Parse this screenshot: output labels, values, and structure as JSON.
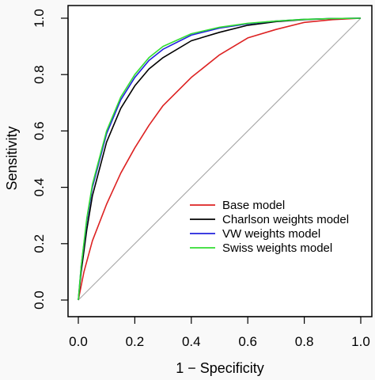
{
  "chart_data": {
    "type": "line",
    "xlabel": "1 − Specificity",
    "ylabel": "Sensitivity",
    "xlim": [
      0.0,
      1.0
    ],
    "ylim": [
      0.0,
      1.0
    ],
    "xticks": [
      "0.0",
      "0.2",
      "0.4",
      "0.6",
      "0.8",
      "1.0"
    ],
    "yticks": [
      "0.0",
      "0.2",
      "0.4",
      "0.6",
      "0.8",
      "1.0"
    ],
    "grid": false,
    "legend_position": "bottom-right",
    "reference_line": {
      "from": [
        0,
        0
      ],
      "to": [
        1,
        1
      ],
      "color": "#aaaaaa"
    },
    "series": [
      {
        "name": "Base model",
        "color": "#dd2222",
        "x": [
          0,
          0.02,
          0.05,
          0.1,
          0.15,
          0.2,
          0.25,
          0.3,
          0.4,
          0.5,
          0.6,
          0.7,
          0.8,
          0.9,
          1.0
        ],
        "y": [
          0,
          0.1,
          0.21,
          0.34,
          0.45,
          0.54,
          0.62,
          0.69,
          0.79,
          0.87,
          0.93,
          0.96,
          0.985,
          0.995,
          1.0
        ]
      },
      {
        "name": "Charlson weights model",
        "color": "#000000",
        "x": [
          0,
          0.01,
          0.03,
          0.05,
          0.1,
          0.15,
          0.2,
          0.25,
          0.3,
          0.4,
          0.5,
          0.6,
          0.7,
          0.8,
          0.9,
          1.0
        ],
        "y": [
          0,
          0.1,
          0.25,
          0.37,
          0.56,
          0.68,
          0.76,
          0.82,
          0.86,
          0.92,
          0.95,
          0.975,
          0.988,
          0.995,
          0.999,
          1.0
        ]
      },
      {
        "name": "VW weights model",
        "color": "#2222dd",
        "x": [
          0,
          0.01,
          0.03,
          0.05,
          0.1,
          0.15,
          0.2,
          0.25,
          0.3,
          0.4,
          0.5,
          0.6,
          0.7,
          0.8,
          0.9,
          1.0
        ],
        "y": [
          0,
          0.12,
          0.28,
          0.4,
          0.59,
          0.71,
          0.79,
          0.85,
          0.89,
          0.94,
          0.965,
          0.98,
          0.99,
          0.996,
          0.999,
          1.0
        ]
      },
      {
        "name": "Swiss weights model",
        "color": "#33dd33",
        "x": [
          0,
          0.01,
          0.03,
          0.05,
          0.1,
          0.15,
          0.2,
          0.25,
          0.3,
          0.4,
          0.5,
          0.6,
          0.7,
          0.8,
          0.9,
          1.0
        ],
        "y": [
          0,
          0.12,
          0.29,
          0.41,
          0.6,
          0.72,
          0.8,
          0.86,
          0.9,
          0.945,
          0.968,
          0.982,
          0.99,
          0.996,
          0.999,
          1.0
        ]
      }
    ]
  }
}
